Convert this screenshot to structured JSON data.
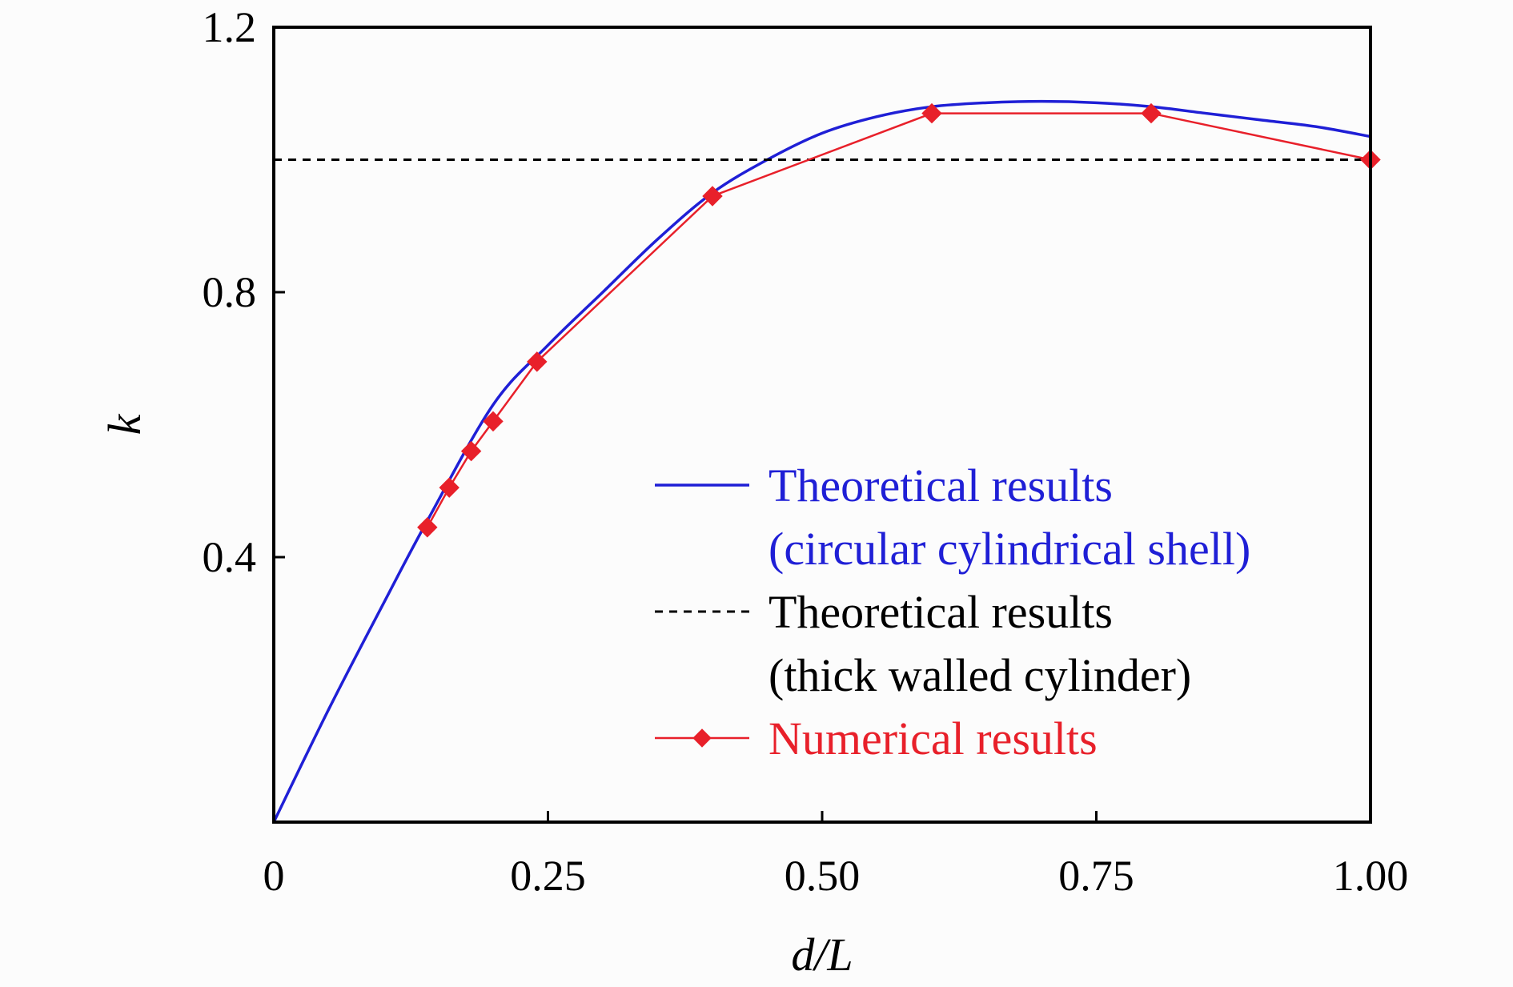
{
  "chart_data": {
    "type": "line",
    "title": "",
    "xlabel": "d/L",
    "ylabel": "k",
    "xlim": [
      0,
      1.0
    ],
    "ylim": [
      0,
      1.2
    ],
    "x_ticks": [
      0,
      0.25,
      0.5,
      0.75,
      1.0
    ],
    "x_tick_labels": [
      "0",
      "0.25",
      "0.50",
      "0.75",
      "1.00"
    ],
    "y_ticks": [
      0.4,
      0.8,
      1.2
    ],
    "y_tick_labels": [
      "0.4",
      "0.8",
      "1.2"
    ],
    "grid": false,
    "legend_position": "lower-right",
    "series": [
      {
        "name": "Theoretical results (circular cylindrical shell)",
        "legend_lines": [
          "Theoretical results",
          "(circular cylindrical shell)"
        ],
        "color": "#1f1fd6",
        "style": "solid",
        "markers": false,
        "x": [
          0,
          0.05,
          0.1,
          0.14,
          0.2,
          0.25,
          0.3,
          0.35,
          0.4,
          0.45,
          0.5,
          0.55,
          0.6,
          0.65,
          0.7,
          0.75,
          0.8,
          0.85,
          0.9,
          0.95,
          1.0
        ],
        "y": [
          0,
          0.17,
          0.33,
          0.455,
          0.63,
          0.72,
          0.8,
          0.88,
          0.95,
          1.0,
          1.04,
          1.065,
          1.08,
          1.086,
          1.088,
          1.086,
          1.08,
          1.07,
          1.06,
          1.05,
          1.035
        ]
      },
      {
        "name": "Theoretical results (thick walled cylinder)",
        "legend_lines": [
          "Theoretical results",
          "(thick walled cylinder)"
        ],
        "color": "#000000",
        "style": "dashed",
        "markers": false,
        "x": [
          0,
          1.0
        ],
        "y": [
          1.0,
          1.0
        ]
      },
      {
        "name": "Numerical results",
        "legend_lines": [
          "Numerical results"
        ],
        "color": "#e8202a",
        "style": "solid",
        "markers": true,
        "x": [
          0.14,
          0.16,
          0.18,
          0.2,
          0.24,
          0.4,
          0.6,
          0.8,
          1.0
        ],
        "y": [
          0.445,
          0.505,
          0.56,
          0.605,
          0.695,
          0.945,
          1.07,
          1.07,
          1.0
        ]
      }
    ]
  }
}
